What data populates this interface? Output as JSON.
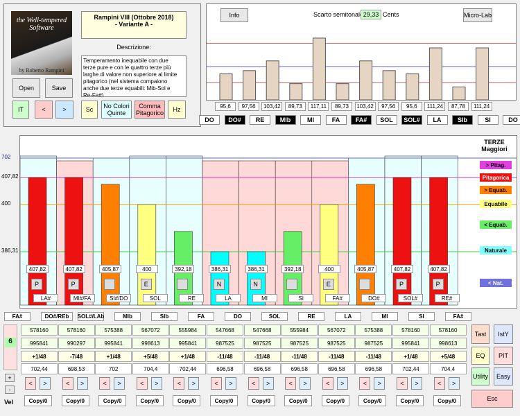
{
  "logo": {
    "line1": "the Well-tempered",
    "line2": "Software",
    "author": "by Roberto Rampini"
  },
  "tuning": {
    "title": "Rampini VIII (Ottobre 2018)",
    "subtitle": "- Variante A -",
    "desc_label": "Descrizione:",
    "description": "Temperamento inequabile con due terze pure e con le quattro terze più larghe di valore non superiore al limite pitagorico (nel sistema compaiono anche due terze equabili: Mib-Sol e Re-Fa#)."
  },
  "buttons": {
    "open": "Open",
    "save": "Save",
    "it": "IT",
    "prev": "<",
    "next": ">",
    "sc": "Sc",
    "no_colori": "No Colori Quinte",
    "comma": "Comma Pitagorico",
    "hz": "Hz",
    "info": "Info",
    "microlab": "Micro-Lab",
    "tast": "Tast",
    "istY": "IstY",
    "eq": "EQ",
    "pit": "PIT",
    "utility": "Utility",
    "easy": "Easy",
    "esc": "Esc",
    "plus": "+",
    "minus": "-",
    "vel": "Vel"
  },
  "scarto": {
    "label": "Scarto semitonale:",
    "value": "29,33",
    "unit": "Cents"
  },
  "top_chart": {
    "values": [
      95.6,
      97.56,
      103.42,
      89.73,
      117.11,
      89.73,
      103.42,
      97.56,
      95.6,
      111.24,
      87.78,
      111.24
    ],
    "labels": [
      "95,6",
      "97,56",
      "103,42",
      "89,73",
      "117,11",
      "89,73",
      "103,42",
      "97,56",
      "95,6",
      "111,24",
      "87,78",
      "111,24"
    ],
    "range": [
      80,
      125
    ],
    "lines": [
      {
        "value": 114,
        "color": "#d06060"
      },
      {
        "value": 100,
        "color": "#6060e0"
      },
      {
        "value": 90.2,
        "color": "#d06060"
      }
    ]
  },
  "notes_top": [
    {
      "n": "DO",
      "d": false
    },
    {
      "n": "DO#",
      "d": true
    },
    {
      "n": "RE",
      "d": false
    },
    {
      "n": "MIb",
      "d": true
    },
    {
      "n": "MI",
      "d": false
    },
    {
      "n": "FA",
      "d": false
    },
    {
      "n": "FA#",
      "d": true
    },
    {
      "n": "SOL",
      "d": false
    },
    {
      "n": "SOL#",
      "d": true
    },
    {
      "n": "LA",
      "d": false
    },
    {
      "n": "SIb",
      "d": true
    },
    {
      "n": "SI",
      "d": false
    },
    {
      "n": "DO",
      "d": false
    }
  ],
  "thirds": {
    "title": "TERZE",
    "subtitle": "Maggiori",
    "axis": [
      {
        "v": 702,
        "t": "702"
      },
      {
        "v": 407.82,
        "t": "407,82"
      },
      {
        "v": 400,
        "t": "400"
      },
      {
        "v": 386.31,
        "t": "386,31"
      }
    ],
    "legend": [
      {
        "t": "> Pitag.",
        "c": "#e040e0",
        "tc": "#000"
      },
      {
        "t": "Pitagorica",
        "c": "#ee1111",
        "tc": "#fff"
      },
      {
        "t": "> Equab.",
        "c": "#ff8000",
        "tc": "#000"
      },
      {
        "t": "Equabile",
        "c": "#ffff80",
        "tc": "#000"
      },
      {
        "t": "< Equab.",
        "c": "#66ee66",
        "tc": "#000"
      },
      {
        "t": "Naturale",
        "c": "#80ffff",
        "tc": "#000"
      },
      {
        "t": "< Nat.",
        "c": "#7070e0",
        "tc": "#fff"
      }
    ],
    "values": [
      407.82,
      407.82,
      405.87,
      400,
      392.18,
      386.31,
      386.31,
      392.18,
      400,
      405.87,
      407.82,
      407.82
    ],
    "labels": [
      "407,82",
      "407,82",
      "405,87",
      "400",
      "392,18",
      "386,31",
      "386,31",
      "392,18",
      "400",
      "405,87",
      "407,82",
      "407,82"
    ],
    "colors": [
      "#ee1111",
      "#ee1111",
      "#ff8000",
      "#ffff80",
      "#66ee66",
      "#00ffff",
      "#00ffff",
      "#66ee66",
      "#ffff80",
      "#ff8000",
      "#ee1111",
      "#ee1111"
    ],
    "fifths_bg": [
      706,
      700,
      702,
      704,
      704,
      696,
      696,
      696,
      696,
      702,
      706,
      704
    ],
    "btn": [
      "P",
      "P",
      "",
      "E",
      "",
      "N",
      "N",
      "",
      "E",
      "",
      "P",
      "P"
    ],
    "names": [
      "LA#",
      "MI#/FA",
      "SI#/DO",
      "SOL",
      "RE",
      "LA",
      "MI",
      "SI",
      "FA#",
      "DO#",
      "SOL#",
      "RE#"
    ]
  },
  "fifth_names": [
    "FA#",
    "DO#/REb",
    "SOL#/LAb",
    "MIb",
    "SIb",
    "FA",
    "DO",
    "SOL",
    "RE",
    "LA",
    "MI",
    "SI",
    "FA#"
  ],
  "rows": {
    "r1": [
      "578160",
      "578160",
      "575388",
      "567072",
      "555984",
      "547668",
      "547668",
      "555984",
      "567072",
      "575388",
      "578160",
      "578160"
    ],
    "r2": [
      "995841",
      "990297",
      "995841",
      "998613",
      "995841",
      "987525",
      "987525",
      "987525",
      "987525",
      "987525",
      "995841",
      "998613"
    ],
    "r3": [
      "+1/48",
      "-7/48",
      "+1/48",
      "+5/48",
      "+1/48",
      "-11/48",
      "-11/48",
      "-11/48",
      "-11/48",
      "-11/48",
      "+1/48",
      "+5/48"
    ],
    "r4": [
      "702,44",
      "698,53",
      "702",
      "704,4",
      "702,44",
      "696,58",
      "696,58",
      "696,58",
      "696,58",
      "696,58",
      "702,44",
      "704,4"
    ],
    "copy": "Copy/0",
    "side": "6"
  }
}
